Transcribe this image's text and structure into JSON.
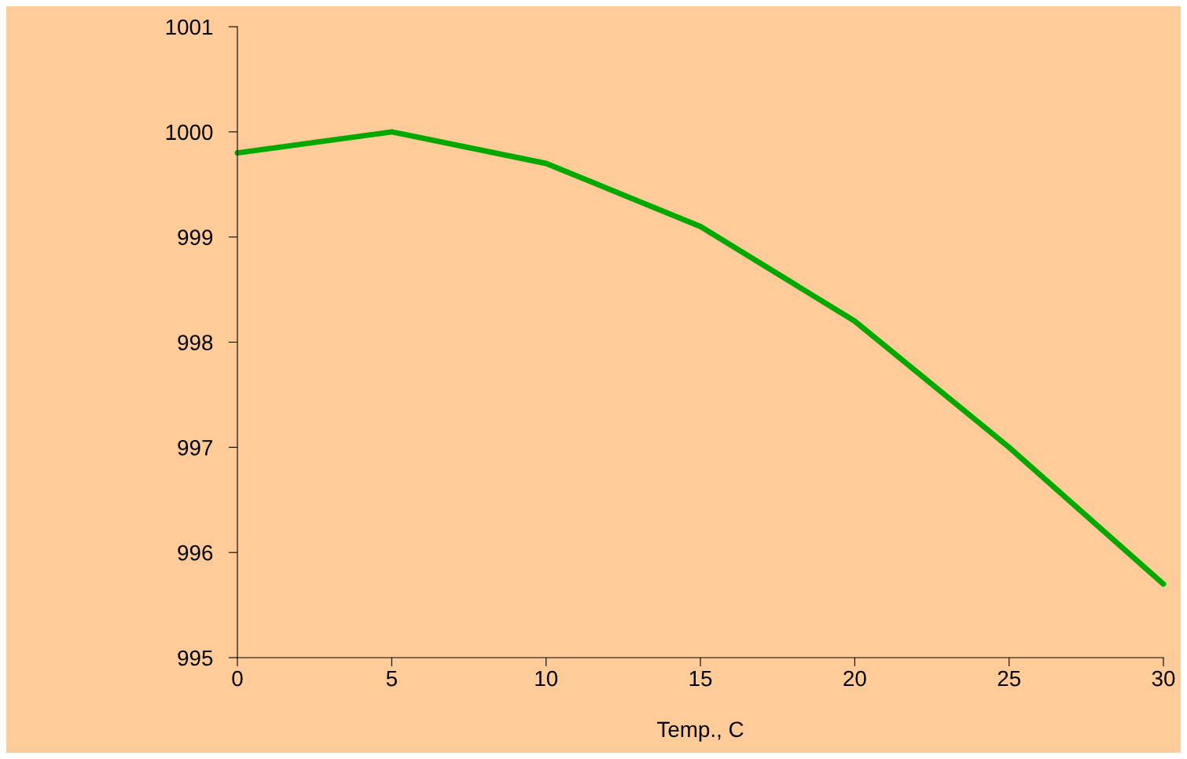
{
  "chart_data": {
    "type": "line",
    "xlabel": "Temp., C",
    "x": [
      0,
      5,
      10,
      15,
      20,
      25,
      30
    ],
    "series": [
      {
        "color": "#00a800",
        "values": [
          999.8,
          1000.0,
          999.7,
          999.1,
          998.2,
          997.0,
          995.7
        ]
      }
    ],
    "xlim": [
      0,
      30
    ],
    "xticks": [
      0,
      5,
      10,
      15,
      20,
      25,
      30
    ],
    "ylim": [
      995,
      1001
    ],
    "yticks": [
      995,
      996,
      997,
      998,
      999,
      1000,
      1001
    ],
    "grid": false,
    "legend": false,
    "marker": "none",
    "line_style": "solid"
  }
}
